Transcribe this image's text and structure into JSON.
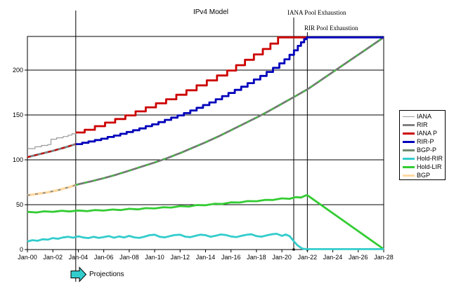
{
  "chart_data": {
    "type": "line",
    "title": "IPv4 Model",
    "xlabel": "",
    "ylabel": "",
    "xlim": [
      2000,
      2028
    ],
    "ylim": [
      0,
      237.5
    ],
    "grid": "horizontal",
    "legend_position": "right",
    "y_ticks": [
      0,
      50,
      100,
      150,
      200
    ],
    "x_ticks": [
      {
        "year": 2000,
        "label": "Jan-00"
      },
      {
        "year": 2002,
        "label": "Jan-02"
      },
      {
        "year": 2004,
        "label": "Jan-04"
      },
      {
        "year": 2006,
        "label": "Jan-06"
      },
      {
        "year": 2008,
        "label": "Jan-08"
      },
      {
        "year": 2010,
        "label": "Jan-10"
      },
      {
        "year": 2012,
        "label": "Jan-12"
      },
      {
        "year": 2014,
        "label": "Jan-14"
      },
      {
        "year": 2016,
        "label": "Jan-16"
      },
      {
        "year": 2018,
        "label": "Jan-18"
      },
      {
        "year": 2020,
        "label": "Jan-20"
      },
      {
        "year": 2022,
        "label": "Jan-22"
      },
      {
        "year": 2024,
        "label": "Jan-24"
      },
      {
        "year": 2026,
        "label": "Jan-26"
      },
      {
        "year": 2028,
        "label": "Jan-28"
      }
    ],
    "events": [
      {
        "label": "IANA Pool Exhaustion",
        "year": 2020.93
      },
      {
        "label": "RIR Pool Exhaustion",
        "year": 2022.0
      },
      {
        "label": "Projections",
        "year": 2003.8
      }
    ],
    "series": [
      {
        "name": "IANA",
        "color": "#999999",
        "width": 1.2,
        "mode": "step",
        "points": [
          [
            2000,
            112.5
          ],
          [
            2000.6,
            114.5
          ],
          [
            2001.1,
            116
          ],
          [
            2001.6,
            117
          ],
          [
            2001.85,
            123
          ],
          [
            2002.3,
            124.5
          ],
          [
            2002.8,
            126
          ],
          [
            2003.2,
            127.5
          ],
          [
            2003.5,
            129
          ],
          [
            2003.8,
            130.5
          ]
        ]
      },
      {
        "name": "RIR",
        "color": "#808080",
        "width": 3,
        "mode": "line",
        "points": [
          [
            2000,
            103
          ],
          [
            2001,
            106.5
          ],
          [
            2002,
            110
          ],
          [
            2003,
            114
          ],
          [
            2003.8,
            117.5
          ]
        ]
      },
      {
        "name": "IANA P history overlay",
        "color": "#cc0000",
        "width": 2,
        "mode": "line",
        "dash": "5,5",
        "points": [
          [
            2000,
            103
          ],
          [
            2001,
            106.5
          ],
          [
            2002,
            110
          ],
          [
            2003,
            114
          ],
          [
            2003.8,
            117.5
          ]
        ]
      },
      {
        "name": "BGP",
        "color": "#ffd9a1",
        "width": 3.5,
        "mode": "line",
        "points": [
          [
            2000,
            60.5
          ],
          [
            2000.5,
            61.5
          ],
          [
            2001,
            62.5
          ],
          [
            2001.5,
            63.5
          ],
          [
            2002,
            65
          ],
          [
            2002.5,
            66.5
          ],
          [
            2003,
            68.5
          ],
          [
            2003.4,
            70
          ],
          [
            2003.8,
            72
          ]
        ]
      },
      {
        "name": "BGP-P history overlay",
        "color": "#8a8a8a",
        "width": 1.8,
        "mode": "line",
        "dash": "4,7",
        "points": [
          [
            2000,
            60.5
          ],
          [
            2000.5,
            61.5
          ],
          [
            2001,
            62.5
          ],
          [
            2001.5,
            63.5
          ],
          [
            2002,
            65
          ],
          [
            2002.5,
            66.5
          ],
          [
            2003,
            68.5
          ],
          [
            2003.4,
            70
          ],
          [
            2003.8,
            72
          ]
        ]
      },
      {
        "name": "BGP-P",
        "color": "#737b73",
        "width": 2.8,
        "mode": "line",
        "points": [
          [
            2003.8,
            72
          ],
          [
            2005,
            76
          ],
          [
            2006,
            79.5
          ],
          [
            2007,
            83.5
          ],
          [
            2008,
            88
          ],
          [
            2009,
            92.5
          ],
          [
            2010,
            97
          ],
          [
            2011,
            102
          ],
          [
            2012,
            107.5
          ],
          [
            2013,
            113.5
          ],
          [
            2014,
            119.5
          ],
          [
            2015,
            126
          ],
          [
            2016,
            133
          ],
          [
            2017,
            140
          ],
          [
            2018,
            147
          ],
          [
            2019,
            154.5
          ],
          [
            2020,
            162.5
          ],
          [
            2021,
            170.5
          ],
          [
            2022.05,
            179
          ],
          [
            2028,
            236.5
          ]
        ]
      },
      {
        "name": "BGP-P green overlay",
        "color": "#33cc33",
        "width": 1.8,
        "mode": "line",
        "dash": "4,9",
        "points": [
          [
            2003.8,
            72
          ],
          [
            2005,
            76
          ],
          [
            2006,
            79.5
          ],
          [
            2007,
            83.5
          ],
          [
            2008,
            88
          ],
          [
            2009,
            92.5
          ],
          [
            2010,
            97
          ],
          [
            2011,
            102
          ],
          [
            2012,
            107.5
          ],
          [
            2013,
            113.5
          ],
          [
            2014,
            119.5
          ],
          [
            2015,
            126
          ],
          [
            2016,
            133
          ],
          [
            2017,
            140
          ],
          [
            2018,
            147
          ],
          [
            2019,
            154.5
          ],
          [
            2020,
            162.5
          ],
          [
            2021,
            170.5
          ],
          [
            2022.05,
            179
          ],
          [
            2028,
            236.5
          ]
        ]
      },
      {
        "name": "IANA P",
        "color": "#cc0000",
        "width": 2.8,
        "mode": "step",
        "points": [
          [
            2003.8,
            130.5
          ],
          [
            2004.5,
            133.5
          ],
          [
            2005.3,
            137.5
          ],
          [
            2006.1,
            141.5
          ],
          [
            2006.9,
            145.5
          ],
          [
            2007.7,
            149.5
          ],
          [
            2008.5,
            154
          ],
          [
            2009.3,
            158.5
          ],
          [
            2010.1,
            163
          ],
          [
            2010.9,
            167.5
          ],
          [
            2011.7,
            172.5
          ],
          [
            2012.5,
            177.5
          ],
          [
            2013.3,
            183
          ],
          [
            2014.1,
            188.5
          ],
          [
            2014.9,
            194
          ],
          [
            2015.7,
            199.5
          ],
          [
            2016.4,
            205.5
          ],
          [
            2017.1,
            211.5
          ],
          [
            2017.8,
            217.5
          ],
          [
            2018.5,
            223.5
          ],
          [
            2019.1,
            229.5
          ],
          [
            2019.7,
            236.5
          ],
          [
            2022.05,
            236.5
          ]
        ]
      },
      {
        "name": "RIR-P",
        "color": "#0000bb",
        "width": 2.8,
        "mode": "step",
        "points": [
          [
            2003.8,
            117.5
          ],
          [
            2004.3,
            119
          ],
          [
            2004.8,
            120.5
          ],
          [
            2005.3,
            122
          ],
          [
            2005.8,
            123.5
          ],
          [
            2006.3,
            125.5
          ],
          [
            2006.8,
            127
          ],
          [
            2007.3,
            129
          ],
          [
            2007.8,
            131
          ],
          [
            2008.3,
            133
          ],
          [
            2008.8,
            135
          ],
          [
            2009.3,
            137.5
          ],
          [
            2009.8,
            139.5
          ],
          [
            2010.3,
            142
          ],
          [
            2010.8,
            144.5
          ],
          [
            2011.3,
            147
          ],
          [
            2011.8,
            149.5
          ],
          [
            2012.3,
            152
          ],
          [
            2012.8,
            155
          ],
          [
            2013.3,
            158
          ],
          [
            2013.8,
            161
          ],
          [
            2014.3,
            164
          ],
          [
            2014.8,
            167.5
          ],
          [
            2015.3,
            171
          ],
          [
            2015.8,
            174.5
          ],
          [
            2016.3,
            178
          ],
          [
            2016.8,
            181.5
          ],
          [
            2017.3,
            185.5
          ],
          [
            2017.8,
            189.5
          ],
          [
            2018.3,
            193.5
          ],
          [
            2018.8,
            198
          ],
          [
            2019.3,
            202.5
          ],
          [
            2019.8,
            207.5
          ],
          [
            2020.2,
            212
          ],
          [
            2020.6,
            217
          ],
          [
            2020.95,
            222
          ],
          [
            2021.25,
            227
          ],
          [
            2021.5,
            231
          ],
          [
            2021.75,
            234.5
          ],
          [
            2021.95,
            236.5
          ],
          [
            2028,
            236.5
          ]
        ]
      },
      {
        "name": "Hold-LIR",
        "color": "#33cc33",
        "width": 2.8,
        "mode": "line",
        "points": [
          [
            2000,
            42
          ],
          [
            2000.7,
            41.3
          ],
          [
            2001.3,
            42.6
          ],
          [
            2002,
            42
          ],
          [
            2002.7,
            43.2
          ],
          [
            2003.3,
            42.4
          ],
          [
            2004,
            43.5
          ],
          [
            2004.7,
            42.8
          ],
          [
            2005.3,
            44
          ],
          [
            2006,
            43.4
          ],
          [
            2006.7,
            44.6
          ],
          [
            2007.3,
            44
          ],
          [
            2008,
            45.4
          ],
          [
            2008.7,
            44.8
          ],
          [
            2009.3,
            46.2
          ],
          [
            2010,
            45.8
          ],
          [
            2010.7,
            47.2
          ],
          [
            2011.3,
            46.8
          ],
          [
            2012,
            48.4
          ],
          [
            2012.7,
            48
          ],
          [
            2013.3,
            49.6
          ],
          [
            2014,
            49.4
          ],
          [
            2014.7,
            51
          ],
          [
            2015.3,
            50.8
          ],
          [
            2016,
            52.6
          ],
          [
            2016.7,
            52.4
          ],
          [
            2017.3,
            54
          ],
          [
            2018,
            53.8
          ],
          [
            2018.7,
            55.4
          ],
          [
            2019.3,
            55.2
          ],
          [
            2020,
            57
          ],
          [
            2020.6,
            56.6
          ],
          [
            2021.1,
            58.4
          ],
          [
            2021.5,
            58
          ],
          [
            2021.9,
            60.5
          ],
          [
            2022.05,
            60
          ],
          [
            2028,
            0.5
          ]
        ]
      },
      {
        "name": "Hold-RIR",
        "color": "#33cccc",
        "width": 2.8,
        "mode": "line",
        "points": [
          [
            2000,
            9
          ],
          [
            2000.4,
            10.5
          ],
          [
            2000.8,
            9.8
          ],
          [
            2001.2,
            11.5
          ],
          [
            2001.6,
            11
          ],
          [
            2002,
            12.8
          ],
          [
            2002.4,
            12
          ],
          [
            2002.8,
            13.5
          ],
          [
            2003.2,
            14.2
          ],
          [
            2003.6,
            13.2
          ],
          [
            2004,
            14.8
          ],
          [
            2004.4,
            13.4
          ],
          [
            2004.8,
            12.8
          ],
          [
            2005.2,
            14.2
          ],
          [
            2005.6,
            13
          ],
          [
            2006,
            13.8
          ],
          [
            2006.4,
            15
          ],
          [
            2006.8,
            13.2
          ],
          [
            2007.2,
            14.6
          ],
          [
            2007.6,
            13.4
          ],
          [
            2008,
            15.2
          ],
          [
            2008.4,
            13.6
          ],
          [
            2008.8,
            13
          ],
          [
            2009.2,
            14.4
          ],
          [
            2009.6,
            16
          ],
          [
            2010,
            16.6
          ],
          [
            2010.4,
            14.2
          ],
          [
            2010.8,
            13.6
          ],
          [
            2011.2,
            15
          ],
          [
            2011.6,
            16.2
          ],
          [
            2012,
            16.6
          ],
          [
            2012.4,
            14.4
          ],
          [
            2012.8,
            13.8
          ],
          [
            2013.2,
            15.2
          ],
          [
            2013.6,
            16.6
          ],
          [
            2014,
            16
          ],
          [
            2014.4,
            14.2
          ],
          [
            2014.8,
            15.4
          ],
          [
            2015.2,
            16.8
          ],
          [
            2015.6,
            16.2
          ],
          [
            2016,
            14.6
          ],
          [
            2016.4,
            13.8
          ],
          [
            2016.8,
            15.2
          ],
          [
            2017.2,
            16.4
          ],
          [
            2017.6,
            17
          ],
          [
            2018,
            15
          ],
          [
            2018.4,
            14.4
          ],
          [
            2018.8,
            15.8
          ],
          [
            2019.2,
            17
          ],
          [
            2019.6,
            17.6
          ],
          [
            2020,
            15.2
          ],
          [
            2020.3,
            16.8
          ],
          [
            2020.6,
            15
          ],
          [
            2020.9,
            10
          ],
          [
            2021.2,
            5
          ],
          [
            2021.6,
            1
          ],
          [
            2021.9,
            0.5
          ],
          [
            2028,
            0.5
          ]
        ]
      }
    ]
  },
  "legend": {
    "items": [
      {
        "label": "IANA",
        "color": "#999999",
        "thickness": 1
      },
      {
        "label": "RIR",
        "color": "#808080",
        "thickness": 3
      },
      {
        "label": "IANA P",
        "color": "#cc0000",
        "thickness": 3
      },
      {
        "label": "RIR-P",
        "color": "#0000bb",
        "thickness": 3
      },
      {
        "label": "BGP-P",
        "color": "#6f8a6f",
        "thickness": 3
      },
      {
        "label": "Hold-RIR",
        "color": "#33cccc",
        "thickness": 3
      },
      {
        "label": "Hold-LIR",
        "color": "#33cc33",
        "thickness": 3
      },
      {
        "label": "BGP",
        "color": "#ffd9a1",
        "thickness": 3
      }
    ]
  },
  "colors": {
    "axis": "#000000",
    "grid": "#000000",
    "event_line": "#000000",
    "arrow_fill": "#33cccc"
  }
}
